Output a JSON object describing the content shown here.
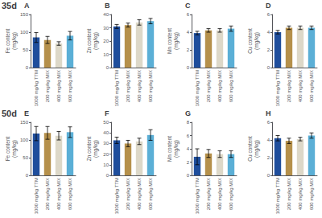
{
  "chart_data": [
    {
      "type": "bar",
      "title": "A",
      "annotations": [
        "35d"
      ],
      "ylabel": "Fe content\n(mg/kg)",
      "categories": [
        "1000 mg/kg TTM",
        "200 mg/kg MIX",
        "400 mg/kg MIX",
        "600 mg/kg MIX"
      ],
      "values": [
        85,
        78,
        68,
        90
      ],
      "errors": [
        14,
        10,
        5,
        12
      ],
      "colors": [
        "#1f4e9c",
        "#b5904b",
        "#ddd8c8",
        "#5bafd6"
      ],
      "ylim": [
        0,
        150
      ],
      "yticks": [
        0,
        50,
        100,
        150
      ],
      "grid": false
    },
    {
      "type": "bar",
      "title": "B",
      "ylabel": "Zn content\n(mg/kg)",
      "categories": [
        "1000 mg/kg TTM",
        "200 mg/kg MIX",
        "400 mg/kg MIX",
        "600 mg/kg MIX"
      ],
      "values": [
        31,
        32,
        34,
        35
      ],
      "errors": [
        1.5,
        1.5,
        2,
        2
      ],
      "colors": [
        "#1f4e9c",
        "#b5904b",
        "#ddd8c8",
        "#5bafd6"
      ],
      "ylim": [
        0,
        40
      ],
      "yticks": [
        0,
        10,
        20,
        30,
        40
      ],
      "grid": false
    },
    {
      "type": "bar",
      "title": "C",
      "ylabel": "Mn content\n(mg/kg)",
      "categories": [
        "1000 mg/kg TTM",
        "200 mg/kg MIX",
        "400 mg/kg MIX",
        "600 mg/kg MIX"
      ],
      "values": [
        3.9,
        4.2,
        4.2,
        4.4
      ],
      "errors": [
        0.2,
        0.2,
        0.2,
        0.3
      ],
      "colors": [
        "#1f4e9c",
        "#b5904b",
        "#ddd8c8",
        "#5bafd6"
      ],
      "ylim": [
        0,
        6
      ],
      "yticks": [
        0,
        2,
        4,
        6
      ],
      "grid": false
    },
    {
      "type": "bar",
      "title": "D",
      "ylabel": "Cu content\n(mg/kg)",
      "categories": [
        "1000 mg/kg TTM",
        "200 mg/kg MIX",
        "400 mg/kg MIX",
        "600 mg/kg MIX"
      ],
      "values": [
        4.0,
        4.5,
        4.5,
        4.5
      ],
      "errors": [
        0.2,
        0.2,
        0.2,
        0.2
      ],
      "colors": [
        "#1f4e9c",
        "#b5904b",
        "#ddd8c8",
        "#5bafd6"
      ],
      "ylim": [
        0,
        6
      ],
      "yticks": [
        0,
        2,
        4,
        6
      ],
      "grid": false
    },
    {
      "type": "bar",
      "title": "E",
      "annotations": [
        "50d"
      ],
      "ylabel": "Fe content\n(mg/kg)",
      "categories": [
        "1000 mg/kg TTM",
        "200 mg/kg MIX",
        "400 mg/kg MIX",
        "600 mg/kg MIX"
      ],
      "values": [
        118,
        120,
        112,
        122
      ],
      "errors": [
        20,
        18,
        12,
        15
      ],
      "colors": [
        "#1f4e9c",
        "#b5904b",
        "#ddd8c8",
        "#5bafd6"
      ],
      "ylim": [
        0,
        150
      ],
      "yticks": [
        0,
        50,
        100,
        150
      ],
      "grid": false
    },
    {
      "type": "bar",
      "title": "F",
      "ylabel": "Zn content\n(mg/kg)",
      "categories": [
        "1000 mg/kg TTM",
        "200 mg/kg MIX",
        "400 mg/kg MIX",
        "600 mg/kg MIX"
      ],
      "values": [
        33,
        30,
        32,
        38
      ],
      "errors": [
        3,
        3,
        3,
        5
      ],
      "colors": [
        "#1f4e9c",
        "#b5904b",
        "#ddd8c8",
        "#5bafd6"
      ],
      "ylim": [
        0,
        50
      ],
      "yticks": [
        0,
        10,
        20,
        30,
        40,
        50
      ],
      "grid": false
    },
    {
      "type": "bar",
      "title": "G",
      "ylabel": "Mn content\n(mg/kg)",
      "categories": [
        "1000 mg/kg TTM",
        "200 mg/kg MIX",
        "400 mg/kg MIX",
        "600 mg/kg MIX"
      ],
      "values": [
        2.8,
        3.3,
        3.2,
        3.2
      ],
      "errors": [
        1.2,
        0.6,
        0.5,
        0.5
      ],
      "colors": [
        "#1f4e9c",
        "#b5904b",
        "#ddd8c8",
        "#5bafd6"
      ],
      "ylim": [
        0,
        8
      ],
      "yticks": [
        0,
        2,
        4,
        6,
        8
      ],
      "grid": false
    },
    {
      "type": "bar",
      "title": "H",
      "ylabel": "Cu content\n(mg/kg)",
      "categories": [
        "1000 mg/kg TTM",
        "200 mg/kg MIX",
        "400 mg/kg MIX",
        "600 mg/kg MIX"
      ],
      "values": [
        4.2,
        3.9,
        4.1,
        4.5
      ],
      "errors": [
        0.3,
        0.3,
        0.2,
        0.3
      ],
      "colors": [
        "#1f4e9c",
        "#b5904b",
        "#ddd8c8",
        "#5bafd6"
      ],
      "ylim": [
        0,
        6
      ],
      "yticks": [
        0,
        2,
        4,
        6
      ],
      "grid": false
    }
  ]
}
